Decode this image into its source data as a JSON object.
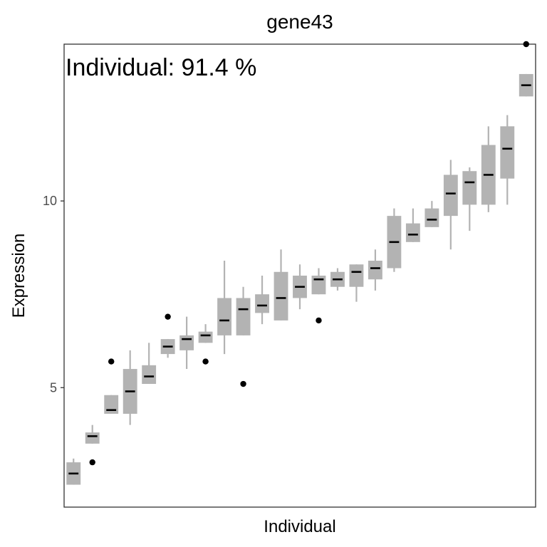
{
  "chart_data": {
    "type": "box",
    "title": "gene43",
    "annotation": "Individual: 91.4 %",
    "xlabel": "Individual",
    "ylabel": "Expression",
    "ylim": [
      1.8,
      14.2
    ],
    "yticks": [
      5,
      10
    ],
    "grid": false,
    "legend": "none",
    "box_color": "#b3b3b3",
    "median_color": "#000000",
    "outlier_color": "#000000",
    "boxes": [
      {
        "q1": 2.4,
        "median": 2.7,
        "q3": 3.0,
        "lower": 2.4,
        "upper": 3.1,
        "outliers": []
      },
      {
        "q1": 3.5,
        "median": 3.7,
        "q3": 3.8,
        "lower": 3.5,
        "upper": 4.0,
        "outliers": [
          3.0
        ]
      },
      {
        "q1": 4.3,
        "median": 4.4,
        "q3": 4.8,
        "lower": 4.3,
        "upper": 4.8,
        "outliers": [
          5.7
        ]
      },
      {
        "q1": 4.3,
        "median": 4.9,
        "q3": 5.5,
        "lower": 4.0,
        "upper": 6.0,
        "outliers": []
      },
      {
        "q1": 5.1,
        "median": 5.3,
        "q3": 5.6,
        "lower": 5.1,
        "upper": 6.2,
        "outliers": []
      },
      {
        "q1": 5.9,
        "median": 6.1,
        "q3": 6.3,
        "lower": 5.8,
        "upper": 6.3,
        "outliers": [
          6.9
        ]
      },
      {
        "q1": 6.0,
        "median": 6.3,
        "q3": 6.4,
        "lower": 5.5,
        "upper": 6.9,
        "outliers": []
      },
      {
        "q1": 6.2,
        "median": 6.4,
        "q3": 6.5,
        "lower": 6.2,
        "upper": 6.7,
        "outliers": [
          5.7
        ]
      },
      {
        "q1": 6.4,
        "median": 6.8,
        "q3": 7.4,
        "lower": 5.9,
        "upper": 8.4,
        "outliers": []
      },
      {
        "q1": 6.4,
        "median": 7.1,
        "q3": 7.4,
        "lower": 6.4,
        "upper": 7.7,
        "outliers": [
          5.1
        ]
      },
      {
        "q1": 7.0,
        "median": 7.2,
        "q3": 7.5,
        "lower": 6.7,
        "upper": 8.0,
        "outliers": []
      },
      {
        "q1": 6.8,
        "median": 7.4,
        "q3": 8.1,
        "lower": 6.8,
        "upper": 8.7,
        "outliers": []
      },
      {
        "q1": 7.4,
        "median": 7.7,
        "q3": 8.0,
        "lower": 7.1,
        "upper": 8.3,
        "outliers": []
      },
      {
        "q1": 7.5,
        "median": 7.9,
        "q3": 8.0,
        "lower": 7.5,
        "upper": 8.2,
        "outliers": [
          6.8
        ]
      },
      {
        "q1": 7.7,
        "median": 7.9,
        "q3": 8.1,
        "lower": 7.6,
        "upper": 8.2,
        "outliers": []
      },
      {
        "q1": 7.7,
        "median": 8.1,
        "q3": 8.3,
        "lower": 7.3,
        "upper": 8.3,
        "outliers": []
      },
      {
        "q1": 7.9,
        "median": 8.2,
        "q3": 8.4,
        "lower": 7.6,
        "upper": 8.7,
        "outliers": []
      },
      {
        "q1": 8.2,
        "median": 8.9,
        "q3": 9.6,
        "lower": 8.1,
        "upper": 9.8,
        "outliers": []
      },
      {
        "q1": 8.9,
        "median": 9.1,
        "q3": 9.4,
        "lower": 8.9,
        "upper": 9.8,
        "outliers": []
      },
      {
        "q1": 9.3,
        "median": 9.5,
        "q3": 9.8,
        "lower": 9.3,
        "upper": 10.0,
        "outliers": []
      },
      {
        "q1": 9.6,
        "median": 10.2,
        "q3": 10.7,
        "lower": 8.7,
        "upper": 11.1,
        "outliers": []
      },
      {
        "q1": 9.9,
        "median": 10.5,
        "q3": 10.8,
        "lower": 9.2,
        "upper": 10.9,
        "outliers": []
      },
      {
        "q1": 9.9,
        "median": 10.7,
        "q3": 11.5,
        "lower": 9.7,
        "upper": 12.0,
        "outliers": []
      },
      {
        "q1": 10.6,
        "median": 11.4,
        "q3": 12.0,
        "lower": 9.9,
        "upper": 12.3,
        "outliers": []
      },
      {
        "q1": 12.8,
        "median": 13.1,
        "q3": 13.4,
        "lower": 12.8,
        "upper": 13.4,
        "outliers": [
          14.2
        ]
      }
    ]
  }
}
